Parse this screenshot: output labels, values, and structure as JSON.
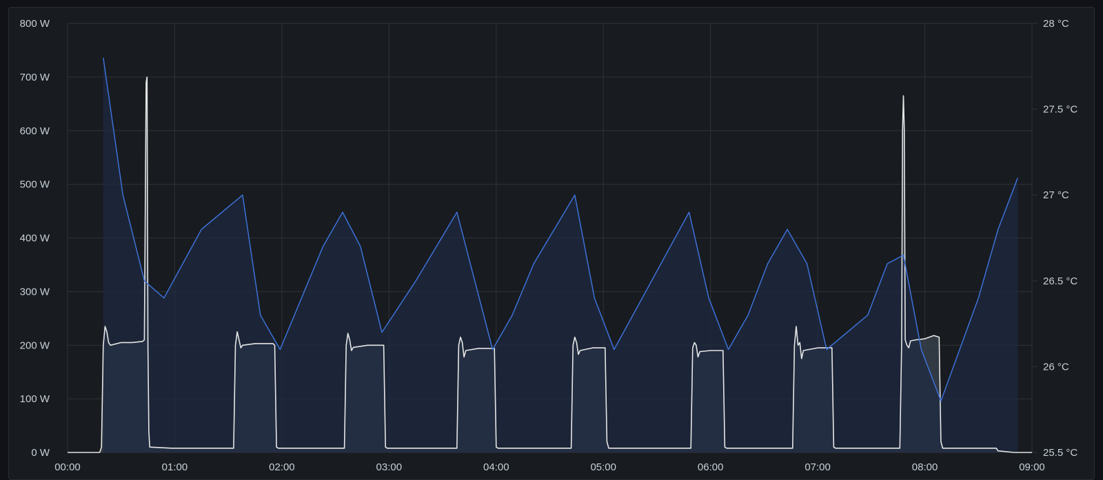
{
  "chart_data": {
    "type": "line",
    "x_ticks": [
      "00:00",
      "01:00",
      "02:00",
      "03:00",
      "04:00",
      "05:00",
      "06:00",
      "07:00",
      "08:00",
      "09:00"
    ],
    "y_left": {
      "ticks": [
        "0 W",
        "100 W",
        "200 W",
        "300 W",
        "400 W",
        "500 W",
        "600 W",
        "700 W",
        "800 W"
      ],
      "range": [
        0,
        800
      ],
      "unit": "W"
    },
    "y_right": {
      "ticks": [
        "25.5 °C",
        "26 °C",
        "26.5 °C",
        "27 °C",
        "27.5 °C",
        "28 °C"
      ],
      "range": [
        25.5,
        28
      ],
      "unit": "°C"
    },
    "x_range_minutes": [
      0,
      540
    ],
    "grid": true,
    "series": [
      {
        "axis": "left",
        "color": "#e6e6e6",
        "fill": "#3a4450",
        "points": [
          [
            0,
            0
          ],
          [
            18,
            0
          ],
          [
            19,
            10
          ],
          [
            20,
            200
          ],
          [
            21,
            235
          ],
          [
            22,
            225
          ],
          [
            23,
            205
          ],
          [
            24,
            200
          ],
          [
            30,
            205
          ],
          [
            36,
            205
          ],
          [
            42,
            207
          ],
          [
            43,
            210
          ],
          [
            44,
            690
          ],
          [
            44.5,
            700
          ],
          [
            45,
            200
          ],
          [
            45.5,
            40
          ],
          [
            46,
            10
          ],
          [
            58,
            8
          ],
          [
            80,
            8
          ],
          [
            93,
            8
          ],
          [
            94,
            200
          ],
          [
            95,
            225
          ],
          [
            96,
            210
          ],
          [
            97,
            195
          ],
          [
            98,
            200
          ],
          [
            105,
            203
          ],
          [
            115,
            203
          ],
          [
            116,
            200
          ],
          [
            117,
            10
          ],
          [
            118,
            8
          ],
          [
            150,
            8
          ],
          [
            155,
            8
          ],
          [
            156,
            200
          ],
          [
            157,
            222
          ],
          [
            158,
            210
          ],
          [
            159,
            190
          ],
          [
            160,
            196
          ],
          [
            168,
            200
          ],
          [
            176,
            200
          ],
          [
            177,
            200
          ],
          [
            178,
            10
          ],
          [
            179,
            8
          ],
          [
            200,
            8
          ],
          [
            218,
            8
          ],
          [
            219,
            200
          ],
          [
            220,
            215
          ],
          [
            221,
            205
          ],
          [
            222,
            178
          ],
          [
            223,
            190
          ],
          [
            230,
            194
          ],
          [
            238,
            194
          ],
          [
            239,
            194
          ],
          [
            240,
            10
          ],
          [
            241,
            8
          ],
          [
            260,
            8
          ],
          [
            282,
            8
          ],
          [
            283,
            200
          ],
          [
            284,
            215
          ],
          [
            285,
            205
          ],
          [
            286,
            183
          ],
          [
            287,
            190
          ],
          [
            294,
            195
          ],
          [
            300,
            195
          ],
          [
            301,
            195
          ],
          [
            302,
            20
          ],
          [
            303,
            8
          ],
          [
            320,
            8
          ],
          [
            349,
            8
          ],
          [
            350,
            195
          ],
          [
            351,
            205
          ],
          [
            352,
            200
          ],
          [
            353,
            178
          ],
          [
            354,
            188
          ],
          [
            360,
            190
          ],
          [
            366,
            190
          ],
          [
            367,
            190
          ],
          [
            368,
            10
          ],
          [
            369,
            8
          ],
          [
            380,
            8
          ],
          [
            406,
            8
          ],
          [
            407,
            200
          ],
          [
            408,
            235
          ],
          [
            409,
            200
          ],
          [
            410,
            205
          ],
          [
            411,
            175
          ],
          [
            412,
            190
          ],
          [
            420,
            195
          ],
          [
            427,
            195
          ],
          [
            428,
            195
          ],
          [
            429,
            10
          ],
          [
            430,
            8
          ],
          [
            450,
            8
          ],
          [
            466,
            8
          ],
          [
            467,
            200
          ],
          [
            467.5,
            600
          ],
          [
            468,
            665
          ],
          [
            468.5,
            600
          ],
          [
            469,
            210
          ],
          [
            470,
            200
          ],
          [
            471,
            195
          ],
          [
            472,
            208
          ],
          [
            475,
            210
          ],
          [
            480,
            212
          ],
          [
            485,
            218
          ],
          [
            488,
            215
          ],
          [
            489,
            20
          ],
          [
            490,
            8
          ],
          [
            500,
            8
          ],
          [
            520,
            8
          ],
          [
            521,
            3
          ],
          [
            530,
            0
          ],
          [
            540,
            0
          ]
        ]
      },
      {
        "axis": "right",
        "color": "#3d71d9",
        "fill": "#1e2a42",
        "points": [
          [
            20,
            27.8
          ],
          [
            31,
            27
          ],
          [
            43,
            26.5
          ],
          [
            54,
            26.4
          ],
          [
            75,
            26.8
          ],
          [
            98,
            27
          ],
          [
            108,
            26.3
          ],
          [
            119,
            26.1
          ],
          [
            143,
            26.7
          ],
          [
            154,
            26.9
          ],
          [
            164,
            26.7
          ],
          [
            176,
            26.2
          ],
          [
            195,
            26.5
          ],
          [
            218,
            26.9
          ],
          [
            238,
            26.1
          ],
          [
            249,
            26.3
          ],
          [
            261,
            26.6
          ],
          [
            284,
            27
          ],
          [
            295,
            26.4
          ],
          [
            306,
            26.1
          ],
          [
            348,
            26.9
          ],
          [
            359,
            26.4
          ],
          [
            370,
            26.1
          ],
          [
            381,
            26.3
          ],
          [
            392,
            26.6
          ],
          [
            403,
            26.8
          ],
          [
            414,
            26.6
          ],
          [
            425,
            26.1
          ],
          [
            448,
            26.3
          ],
          [
            459,
            26.6
          ],
          [
            468,
            26.65
          ],
          [
            478,
            26.1
          ],
          [
            489,
            25.8
          ],
          [
            510,
            26.4
          ],
          [
            521,
            26.8
          ],
          [
            532,
            27.1
          ]
        ]
      }
    ]
  }
}
